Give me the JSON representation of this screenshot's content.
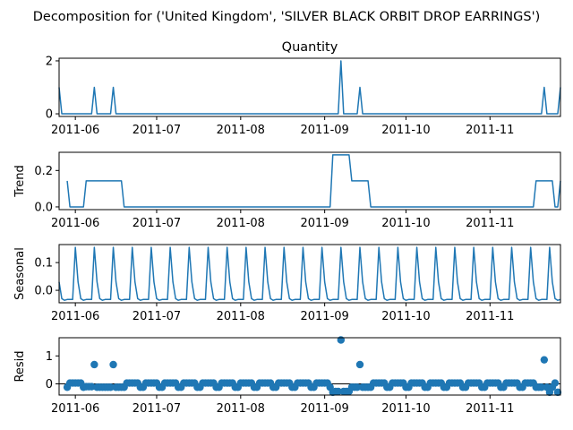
{
  "figure": {
    "suptitle": "Decomposition for ('United Kingdom', 'SILVER BLACK ORBIT DROP EARRINGS')"
  },
  "chart_data": [
    {
      "type": "line",
      "title": "Quantity",
      "ylabel": "",
      "ylim": [
        -0.1,
        2.1
      ],
      "yticks": [
        0,
        2
      ],
      "xticks": [
        "2011-06",
        "2011-07",
        "2011-08",
        "2011-09",
        "2011-10",
        "2011-11"
      ],
      "xrange": [
        "2011-05-26",
        "2011-11-27"
      ],
      "color": "#1f77b4",
      "points": [
        [
          "2011-05-26",
          1
        ],
        [
          "2011-05-27",
          0
        ],
        [
          "2011-06-07",
          0
        ],
        [
          "2011-06-08",
          1
        ],
        [
          "2011-06-09",
          0
        ],
        [
          "2011-06-14",
          0
        ],
        [
          "2011-06-15",
          1
        ],
        [
          "2011-06-16",
          0
        ],
        [
          "2011-09-06",
          0
        ],
        [
          "2011-09-07",
          2
        ],
        [
          "2011-09-08",
          0
        ],
        [
          "2011-09-13",
          0
        ],
        [
          "2011-09-14",
          1
        ],
        [
          "2011-09-15",
          0
        ],
        [
          "2011-11-20",
          0
        ],
        [
          "2011-11-21",
          1
        ],
        [
          "2011-11-22",
          0
        ],
        [
          "2011-11-26",
          0
        ],
        [
          "2011-11-27",
          1
        ]
      ]
    },
    {
      "type": "line",
      "title": "",
      "ylabel": "Trend",
      "ylim": [
        -0.015,
        0.3
      ],
      "yticks": [
        0.0,
        0.2
      ],
      "xticks": [
        "2011-06",
        "2011-07",
        "2011-08",
        "2011-09",
        "2011-10",
        "2011-11"
      ],
      "xrange": [
        "2011-05-26",
        "2011-11-27"
      ],
      "color": "#1f77b4",
      "points": [
        [
          "2011-05-29",
          0.1429
        ],
        [
          "2011-05-30",
          0
        ],
        [
          "2011-06-04",
          0
        ],
        [
          "2011-06-05",
          0.1429
        ],
        [
          "2011-06-18",
          0.1429
        ],
        [
          "2011-06-19",
          0
        ],
        [
          "2011-09-03",
          0
        ],
        [
          "2011-09-04",
          0.2857
        ],
        [
          "2011-09-10",
          0.2857
        ],
        [
          "2011-09-11",
          0.1429
        ],
        [
          "2011-09-17",
          0.1429
        ],
        [
          "2011-09-18",
          0
        ],
        [
          "2011-11-17",
          0
        ],
        [
          "2011-11-18",
          0.1429
        ],
        [
          "2011-11-24",
          0.1429
        ],
        [
          "2011-11-25",
          0
        ],
        [
          "2011-11-26",
          0
        ],
        [
          "2011-11-27",
          0.1429
        ]
      ]
    },
    {
      "type": "line",
      "title": "",
      "ylabel": "Seasonal",
      "ylim": [
        -0.045,
        0.165
      ],
      "yticks": [
        0.0,
        0.1
      ],
      "xticks": [
        "2011-06",
        "2011-07",
        "2011-08",
        "2011-09",
        "2011-10",
        "2011-11"
      ],
      "xrange": [
        "2011-05-26",
        "2011-11-27"
      ],
      "color": "#1f77b4",
      "period_days": 7,
      "first_date": "2011-05-26",
      "last_date": "2011-11-27",
      "weekly_pattern": [
        0.03,
        -0.03,
        -0.036,
        -0.033,
        -0.033,
        -0.033,
        0.155
      ],
      "pattern_start_date": "2011-05-26"
    },
    {
      "type": "scatter",
      "title": "",
      "ylabel": "Resid",
      "ylim": [
        -0.4,
        1.65
      ],
      "yticks": [
        0,
        1
      ],
      "xticks": [
        "2011-06",
        "2011-07",
        "2011-08",
        "2011-09",
        "2011-10",
        "2011-11"
      ],
      "xrange": [
        "2011-05-26",
        "2011-11-27"
      ],
      "color": "#1f77b4",
      "baseline": 0,
      "first_date": "2011-05-29",
      "last_date": "2011-11-26",
      "default_values": [
        -0.12,
        0.03,
        0.03,
        0.03,
        0.03,
        0.03,
        -0.12
      ],
      "overrides": [
        [
          "2011-06-08",
          0.69
        ],
        [
          "2011-06-15",
          0.69
        ],
        [
          "2011-06-05",
          -0.1
        ],
        [
          "2011-06-06",
          -0.1
        ],
        [
          "2011-06-07",
          -0.1
        ],
        [
          "2011-06-09",
          -0.12
        ],
        [
          "2011-06-10",
          -0.12
        ],
        [
          "2011-06-11",
          -0.12
        ],
        [
          "2011-06-12",
          -0.12
        ],
        [
          "2011-06-13",
          -0.12
        ],
        [
          "2011-06-14",
          -0.12
        ],
        [
          "2011-06-16",
          -0.12
        ],
        [
          "2011-06-17",
          -0.12
        ],
        [
          "2011-06-18",
          -0.12
        ],
        [
          "2011-09-04",
          -0.3
        ],
        [
          "2011-09-05",
          -0.27
        ],
        [
          "2011-09-06",
          -0.27
        ],
        [
          "2011-09-07",
          1.57
        ],
        [
          "2011-09-08",
          -0.27
        ],
        [
          "2011-09-09",
          -0.27
        ],
        [
          "2011-09-10",
          -0.27
        ],
        [
          "2011-09-11",
          -0.12
        ],
        [
          "2011-09-12",
          -0.12
        ],
        [
          "2011-09-13",
          -0.12
        ],
        [
          "2011-09-14",
          0.69
        ],
        [
          "2011-09-15",
          -0.12
        ],
        [
          "2011-09-16",
          -0.12
        ],
        [
          "2011-09-17",
          -0.12
        ],
        [
          "2011-11-18",
          -0.12
        ],
        [
          "2011-11-19",
          -0.12
        ],
        [
          "2011-11-20",
          -0.12
        ],
        [
          "2011-11-21",
          0.86
        ],
        [
          "2011-11-22",
          -0.12
        ],
        [
          "2011-11-23",
          -0.3
        ],
        [
          "2011-11-24",
          -0.12
        ],
        [
          "2011-11-25",
          0.03
        ],
        [
          "2011-11-26",
          -0.3
        ]
      ]
    }
  ]
}
